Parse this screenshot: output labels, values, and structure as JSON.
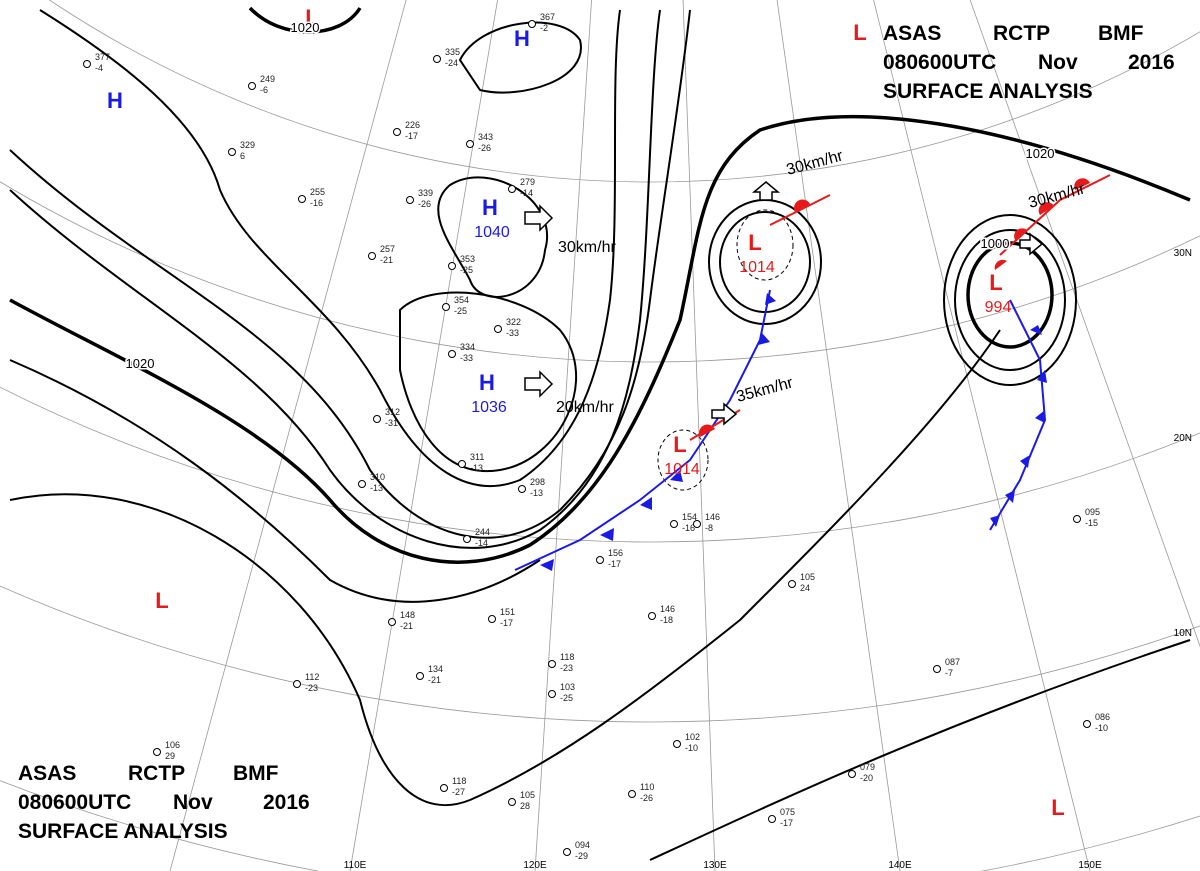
{
  "header_top": {
    "line1": [
      "ASAS",
      "RCTP",
      "BMF"
    ],
    "line2": [
      "080600UTC",
      "Nov",
      "2016"
    ],
    "line3": "SURFACE ANALYSIS"
  },
  "header_bottom": {
    "line1": [
      "ASAS",
      "RCTP",
      "BMF"
    ],
    "line2": [
      "080600UTC",
      "Nov",
      "2016"
    ],
    "line3": "SURFACE ANALYSIS"
  },
  "pressure_centers": [
    {
      "symbol": "H"
    },
    {
      "symbol": "H"
    },
    {
      "symbol": "H",
      "value": "1040"
    },
    {
      "symbol": "H",
      "value": "1036"
    },
    {
      "symbol": "L"
    },
    {
      "symbol": "L",
      "value": "1014"
    },
    {
      "symbol": "L",
      "value": "1014"
    },
    {
      "symbol": "L",
      "value": "994"
    },
    {
      "symbol": "L"
    },
    {
      "symbol": "L"
    },
    {
      "symbol": "L"
    }
  ],
  "isobar_labels": [
    "1020",
    "1020",
    "1020",
    "1000"
  ],
  "motion_labels": [
    "30km/hr",
    "20km/hr",
    "30km/hr",
    "35km/hr",
    "30km/hr"
  ],
  "latitude_labels": [
    "30N",
    "20N",
    "10N"
  ],
  "longitude_labels": [
    "110E",
    "120E",
    "130E",
    "140E",
    "150E"
  ],
  "stations": [
    {
      "pressure": "377",
      "temp": "-4"
    },
    {
      "pressure": "249",
      "temp": "-6"
    },
    {
      "pressure": "329",
      "temp": "6"
    },
    {
      "pressure": "255",
      "temp": "-16"
    },
    {
      "pressure": "339",
      "temp": "-26"
    },
    {
      "pressure": "343",
      "temp": "-26"
    },
    {
      "pressure": "279",
      "temp": "-14"
    },
    {
      "pressure": "257",
      "temp": "-21"
    },
    {
      "pressure": "353",
      "temp": "-25"
    },
    {
      "pressure": "354",
      "temp": "-25"
    },
    {
      "pressure": "322",
      "temp": "-33"
    },
    {
      "pressure": "334",
      "temp": "-33"
    },
    {
      "pressure": "312",
      "temp": "-31"
    },
    {
      "pressure": "310",
      "temp": "-13"
    },
    {
      "pressure": "311",
      "temp": "-13"
    },
    {
      "pressure": "244",
      "temp": "-14"
    },
    {
      "pressure": "298",
      "temp": "-13"
    },
    {
      "pressure": "148",
      "temp": "-21"
    },
    {
      "pressure": "151",
      "temp": "-17"
    },
    {
      "pressure": "134",
      "temp": "-21"
    },
    {
      "pressure": "112",
      "temp": "-23"
    },
    {
      "pressure": "118",
      "temp": "-23"
    },
    {
      "pressure": "103",
      "temp": "-25"
    },
    {
      "pressure": "156",
      "temp": "-17"
    },
    {
      "pressure": "154",
      "temp": "-16"
    },
    {
      "pressure": "146",
      "temp": "-18"
    },
    {
      "pressure": "146",
      "temp": "-8"
    },
    {
      "pressure": "105",
      "temp": "24"
    },
    {
      "pressure": "087",
      "temp": "-7"
    },
    {
      "pressure": "086",
      "temp": "-10"
    },
    {
      "pressure": "095",
      "temp": "-15"
    },
    {
      "pressure": "079",
      "temp": "-20"
    },
    {
      "pressure": "075",
      "temp": "-17"
    },
    {
      "pressure": "102",
      "temp": "-10"
    },
    {
      "pressure": "094",
      "temp": "-29"
    },
    {
      "pressure": "106",
      "temp": "29"
    },
    {
      "pressure": "118",
      "temp": "-27"
    },
    {
      "pressure": "105",
      "temp": "28"
    },
    {
      "pressure": "110",
      "temp": "-26"
    },
    {
      "pressure": "367",
      "temp": "-2"
    },
    {
      "pressure": "335",
      "temp": "-24"
    },
    {
      "pressure": "226",
      "temp": "-17"
    }
  ]
}
